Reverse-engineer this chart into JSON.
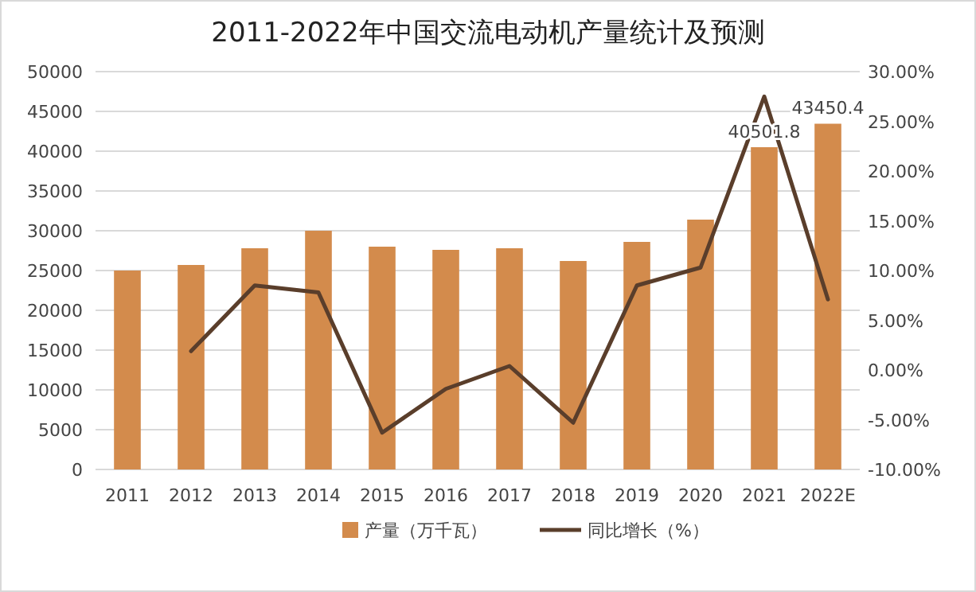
{
  "chart_data": {
    "type": "bar",
    "title": "2011-2022年中国交流电动机产量统计及预测",
    "categories": [
      "2011",
      "2012",
      "2013",
      "2014",
      "2015",
      "2016",
      "2017",
      "2018",
      "2019",
      "2020",
      "2021",
      "2022E"
    ],
    "series": [
      {
        "name": "产量（万千瓦）",
        "color": "#d38b4c",
        "values": [
          25000,
          25700,
          27800,
          30000,
          28000,
          27600,
          27800,
          26200,
          28600,
          31400,
          40501.8,
          43450.4
        ],
        "value_labels": [
          null,
          null,
          null,
          null,
          null,
          null,
          null,
          null,
          null,
          null,
          "40501.8",
          "43450.4"
        ]
      },
      {
        "name": "同比增长（%）",
        "type": "line",
        "axis": "y2",
        "color": "#5a3e2b",
        "values": [
          null,
          1.9,
          8.5,
          7.8,
          -6.3,
          -1.9,
          0.4,
          -5.3,
          8.5,
          10.3,
          27.5,
          7.1
        ]
      }
    ],
    "ylim": [
      0,
      50000
    ],
    "yticks": [
      0,
      5000,
      10000,
      15000,
      20000,
      25000,
      30000,
      35000,
      40000,
      45000,
      50000
    ],
    "y2lim": [
      -10,
      30
    ],
    "y2ticks": [
      {
        "value": -10,
        "label": "-10.00%"
      },
      {
        "value": -5,
        "label": "-5.00%"
      },
      {
        "value": 0,
        "label": "0.00%"
      },
      {
        "value": 5,
        "label": "5.00%"
      },
      {
        "value": 10,
        "label": "10.00%"
      },
      {
        "value": 15,
        "label": "15.00%"
      },
      {
        "value": 20,
        "label": "20.00%"
      },
      {
        "value": 25,
        "label": "25.00%"
      },
      {
        "value": 30,
        "label": "30.00%"
      }
    ],
    "grid": "y",
    "legend": "bottom"
  }
}
